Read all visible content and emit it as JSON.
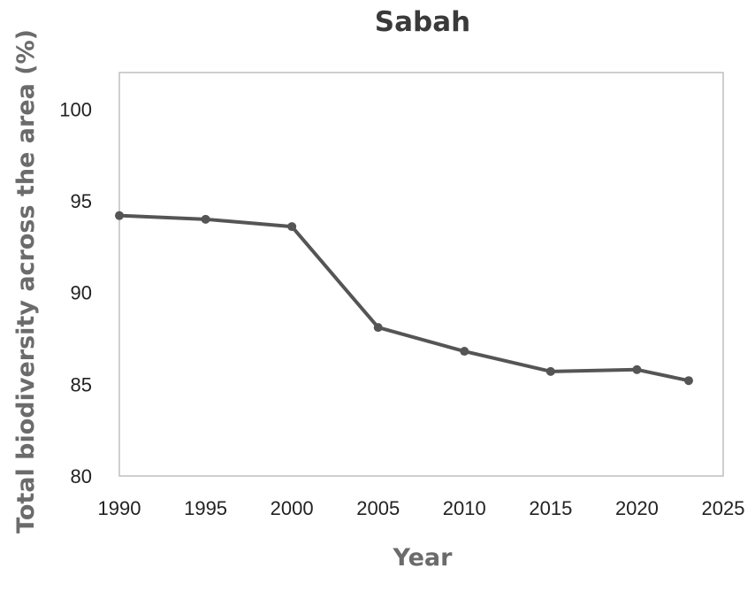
{
  "chart_data": {
    "type": "line",
    "title": "Sabah",
    "xlabel": "Year",
    "ylabel": "Total biodiversity across the area (%)",
    "xlim": [
      1990,
      2025
    ],
    "ylim": [
      80,
      102
    ],
    "xticks": [
      1990,
      1995,
      2000,
      2005,
      2010,
      2015,
      2020,
      2025
    ],
    "yticks": [
      80,
      85,
      90,
      95,
      100
    ],
    "grid": false,
    "legend": "none",
    "series": [
      {
        "color": "#555555",
        "x": [
          1990,
          1995,
          2000,
          2005,
          2010,
          2015,
          2020,
          2023
        ],
        "y": [
          94.2,
          94.0,
          93.6,
          88.1,
          86.8,
          85.7,
          85.8,
          85.2
        ]
      }
    ]
  }
}
